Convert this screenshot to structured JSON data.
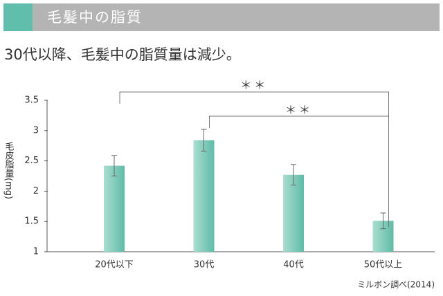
{
  "header": {
    "title": "毛髪中の脂質"
  },
  "chart_data": {
    "type": "bar",
    "title": "30代以降、毛髪中の脂質量は減少。",
    "y_label": "毛皮脂量(mg)",
    "categories": [
      "20代以下",
      "30代",
      "40代",
      "50代以上"
    ],
    "values": [
      2.42,
      2.84,
      2.27,
      1.51
    ],
    "error": [
      0.17,
      0.18,
      0.17,
      0.13
    ],
    "color": "#7ccbb9",
    "ylim": [
      1,
      3.5
    ],
    "yticks": [
      1,
      1.5,
      2,
      2.5,
      3,
      3.5
    ],
    "annotations": [
      "＊＊",
      "＊＊"
    ],
    "source": "ミルボン調べ(2014)"
  }
}
